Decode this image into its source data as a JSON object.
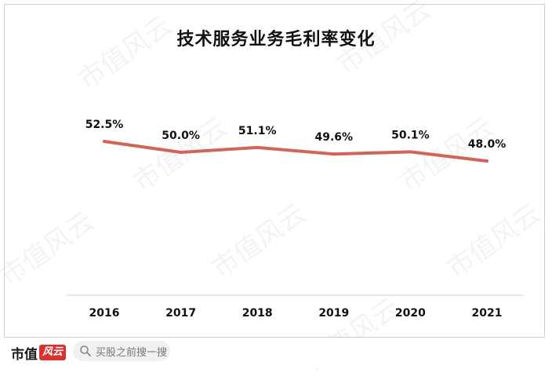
{
  "chart_data": {
    "type": "line",
    "title": "技术服务业务毛利率变化",
    "categories": [
      "2016",
      "2017",
      "2018",
      "2019",
      "2020",
      "2021"
    ],
    "series": [
      {
        "values": [
          52.5,
          50.0,
          51.1,
          49.6,
          50.1,
          48.0
        ]
      }
    ],
    "data_labels": [
      "52.5%",
      "50.0%",
      "51.1%",
      "49.6%",
      "50.1%",
      "48.0%"
    ],
    "line_color": "#d0665b",
    "ylabel": "",
    "xlabel": "",
    "grid": false,
    "legend": "none"
  },
  "watermark_text": "市值风云",
  "brand": {
    "name": "市值",
    "seal": "风云"
  },
  "search": {
    "placeholder": "买股之前搜一搜",
    "icon": "search-icon"
  }
}
